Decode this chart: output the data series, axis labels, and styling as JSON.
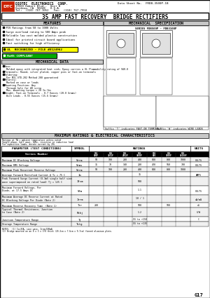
{
  "title": "35 AMP FAST RECOVERY  BRIDGE RECTIFIERS",
  "company": "DIOTEC  ELECTRONICS  CORP.",
  "address1": "19500 Hobart Blvd.,  Unit B",
  "address2": "Gardena, CA  90248   U.S.A.",
  "tel": "Tel:  (310) 767-1052   Fax:  (310) 767-7958",
  "datasheet_no": "Data Sheet No.  FRDB-3500P-1B",
  "features_title": "FEATURES",
  "features": [
    "PIV Ratings from 50 to 1000 Volts",
    "Surge overload rating to 500 Amps peak",
    "Reliable low cost molded plastic construction",
    "Ideal for printed circuit board applications",
    "Fast switching for high efficiency"
  ],
  "ul_text": "UL  RECOGNIZED - FILE #E124962",
  "rohs_text": "RoHS COMPLIANT",
  "mech_title": "MECHANICAL DATA",
  "mech_items": [
    "Case:  Molded epoxy with integrated heat sink; Epoxy carries a UL Flammability rating of 94V-0",
    "Terminals: Round, silver plated, copper pins or fast-on terminals",
    "Soldering:  Per MIL-STD-202 Method 208 guaranteed",
    "Polarity:  Marked on case or leads",
    "Mounting Position: Any  Through hole for #8 screw  Max. mounting torque = 20 In-lbs",
    "Weight: Fast-on Terminals - 0.7 Ounces (20.0 Grams)  Wire Leads - 0.55 Ounces (15.6 Grams)"
  ],
  "mech_spec_title": "MECHANICAL  SPECIFICATION",
  "mech_series": "SERIES FDB500P - FDB3100P",
  "max_ratings_title": "MAXIMUM RATINGS & ELECTRICAL CHARACTERISTICS",
  "ratings_note1": "Ratings at TA = ambient temperature unless noted",
  "ratings_note2": "Single phase, half wave, 60Hz, resistive or inductive load",
  "ratings_note3": "For capacitive loads, derate current by 20%",
  "param_col": "PARAMETER (TEST CONDITIONS)",
  "symbol_col": "SYMBOL",
  "ratings_col": "RATINGS",
  "units_col": "UNITS",
  "series_row": "Series Number",
  "series_models": [
    "FDB 500P",
    "FDB 1501P",
    "FDB 2502P",
    "FDB 3600P",
    "FDB 600",
    "FDB 3500P",
    "FDB 10100P"
  ],
  "table_rows": [
    {
      "param": "Maximum DC Blocking Voltage",
      "symbol": "Vrrm",
      "values": [
        "50",
        "100",
        "200",
        "400",
        "600",
        "800",
        "1000"
      ],
      "units": "VOLTS"
    },
    {
      "param": "Maximum RMS Voltage",
      "symbol": "Vrms",
      "values": [
        "35",
        "70",
        "140",
        "280",
        "420",
        "560",
        "700"
      ],
      "units": "VOLTS"
    },
    {
      "param": "Maximum Peak Recurrent Reverse Voltage",
      "symbol": "Vrrm",
      "values": [
        "50",
        "100",
        "200",
        "400",
        "600",
        "800",
        "1000"
      ],
      "units": ""
    },
    {
      "param": "Average Forward Rectified Current @ Tc = 75 C",
      "symbol": "Io",
      "values": [
        "",
        "",
        "",
        "35",
        "",
        "",
        ""
      ],
      "units": "AMPS"
    },
    {
      "param": "Peak Forward Surge Current (8.3mS single half sine wave superimposed on rated load) Tj = 125 C",
      "symbol": "Ifsm",
      "values": [
        "",
        "",
        "",
        "500",
        "",
        "",
        ""
      ],
      "units": ""
    },
    {
      "param": "Maximum Forward Voltage, Per Diode, at 17.5 Amps DC",
      "symbol": "Vfm",
      "values": [
        "",
        "",
        "",
        "1.1",
        "",
        "",
        ""
      ],
      "units": "VOLTS"
    },
    {
      "param": "Maximum Average DC Reverse Current at Rated DC Blocking Voltage Per Diode (Note 2)",
      "symbol": "Irrm",
      "values": [
        "",
        "",
        "",
        "10 / 1",
        "",
        "",
        ""
      ],
      "units": "uA/mA"
    },
    {
      "param": "Maximum Reverse Recovery Time  (Note 1)",
      "symbol": "Trr",
      "values": [
        "200",
        "",
        "",
        "500",
        "",
        "500",
        ""
      ],
      "units": "nS"
    },
    {
      "param": "Typical Thermal Resistance, Junction to Case  (Note 2)",
      "symbol": "Rthj",
      "values": [
        "",
        "",
        "",
        "1.2",
        "",
        "",
        ""
      ],
      "units": "C/W"
    },
    {
      "param": "Junction Temperature Range",
      "symbol": "Tj",
      "values": [
        "",
        "",
        "",
        "-55 to +150",
        "",
        "",
        ""
      ],
      "units": "C"
    },
    {
      "param": "Storage Temperature Range",
      "symbol": "Tstg",
      "values": [
        "",
        "",
        "",
        "-55 to +135",
        "",
        "",
        ""
      ],
      "units": ""
    }
  ],
  "notes": [
    "NOTES:  (1) Io=35A, sine wave, Irrm=500mA",
    "(2) Bridge mounted on an 8 x 3 x 3/8 thick (20.3cm x 7.6cm x 9.7cm) finned aluminum plate."
  ],
  "page": "G17",
  "suffix_t": "Suffix 'T' indicates FAST-ON TERMINALS",
  "suffix_w": "Suffix 'W' indicates WIRE LEADS",
  "logo_text": "DTC",
  "ul_color": "#ffff00",
  "rohs_color": "#00aa00",
  "header_gray": "#c8c8c8",
  "series_row_bg": "#000000",
  "series_row_fg": "#ffffff",
  "row_colors": [
    "#f0f0f0",
    "#ffffff"
  ],
  "border_color": "#000000",
  "logo_color": "#cc2200"
}
